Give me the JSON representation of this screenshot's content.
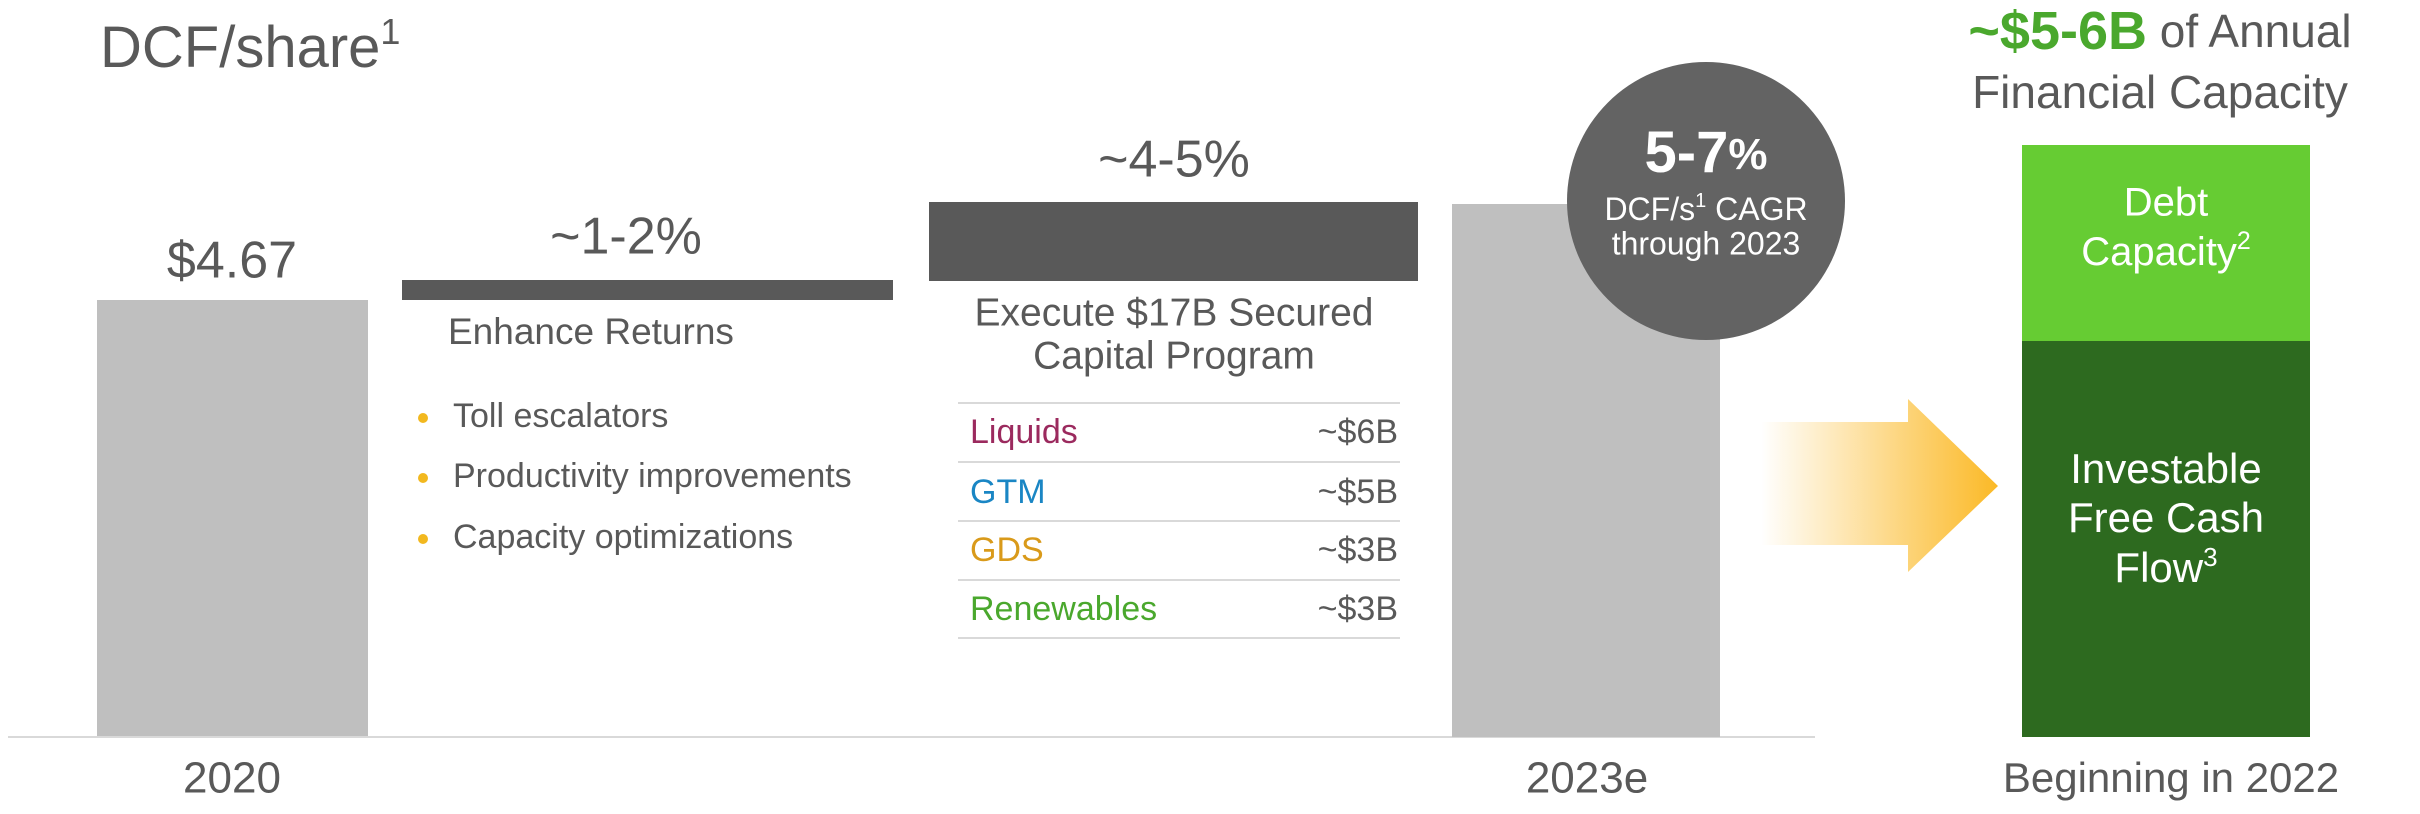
{
  "title": {
    "text": "DCF/share",
    "note": "1"
  },
  "start": {
    "value": "$4.67",
    "label": "2020"
  },
  "steps": [
    {
      "change": "~1-2%",
      "heading": "Enhance Returns",
      "bullets": [
        "Toll escalators",
        "Productivity improvements",
        "Capacity optimizations"
      ]
    },
    {
      "change": "~4-5%",
      "heading_lines": [
        "Execute $17B Secured",
        "Capital Program"
      ],
      "table": [
        {
          "name": "Liquids",
          "amount": "~$6B"
        },
        {
          "name": "GTM",
          "amount": "~$5B"
        },
        {
          "name": "GDS",
          "amount": "~$3B"
        },
        {
          "name": "Renewables",
          "amount": "~$3B"
        }
      ]
    }
  ],
  "end": {
    "label": "2023e"
  },
  "badge": {
    "value": "5-7",
    "unit": "%",
    "line1": "DCF/s",
    "line1_note": "1",
    "line1_rest": " CAGR",
    "line2": "through 2023"
  },
  "capacity": {
    "highlight": "~$5-6B",
    "title_rest": " of Annual",
    "title_line2": "Financial Capacity",
    "debt": {
      "line1": "Debt",
      "line2": "Capacity",
      "note": "2"
    },
    "fcf": {
      "line1": "Investable",
      "line2": "Free Cash",
      "line3": "Flow",
      "note": "3"
    },
    "footer": "Beginning in 2022"
  }
}
